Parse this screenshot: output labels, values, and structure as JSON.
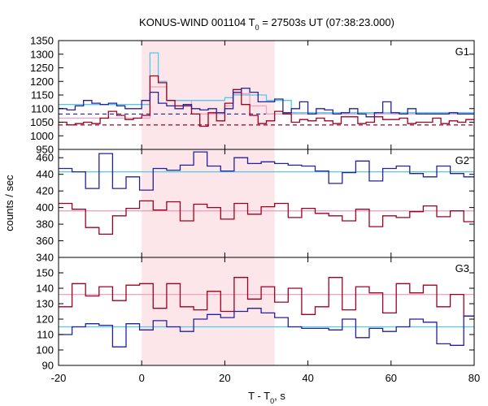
{
  "chart_data": {
    "type": "line",
    "title_main": "KONUS-WIND 001104 T",
    "title_sub": "0",
    "title_rest": " = 27503s UT (07:38:23.000)",
    "xlabel_main": "T - T",
    "xlabel_sub": "0",
    "xlabel_rest": ", s",
    "ylabel": "counts / sec",
    "xlim": [
      -20,
      80
    ],
    "xticks": [
      "-20",
      "0",
      "20",
      "40",
      "60",
      "80"
    ],
    "shaded_interval": [
      0,
      32
    ],
    "colors": {
      "shade": "#fde6ea",
      "red": "#a00020",
      "blue": "#2222a0",
      "cyan": "#55c8e8",
      "pink": "#f0a0c0",
      "lightblue": "#7ab8e8"
    },
    "panels": [
      {
        "name": "G1",
        "ylim": [
          950,
          1350
        ],
        "yticks": [
          "950",
          "1000",
          "1050",
          "1100",
          "1150",
          "1200",
          "1250",
          "1300",
          "1350"
        ],
        "bin_width": 2,
        "x_start": -20,
        "series": [
          {
            "color": "blue",
            "values": [
              1100,
              1095,
              1110,
              1130,
              1120,
              1115,
              1120,
              1110,
              1100,
              1100,
              1130,
              1160,
              1120,
              1110,
              1100,
              1115,
              1100,
              1095,
              1100,
              1085,
              1100,
              1160,
              1175,
              1160,
              1125,
              1125,
              1135,
              1085,
              1100,
              1125,
              1080,
              1100,
              1095,
              1080,
              1085,
              1100,
              1080,
              1070,
              1085,
              1125,
              1085,
              1080,
              1100,
              1080,
              1080,
              1080,
              1080,
              1085,
              1080,
              1080
            ]
          },
          {
            "color": "red",
            "values": [
              1050,
              1040,
              1045,
              1050,
              1045,
              1065,
              1090,
              1075,
              1060,
              1065,
              1075,
              1220,
              1195,
              1130,
              1110,
              1110,
              1080,
              1035,
              1085,
              1055,
              1120,
              1170,
              1115,
              1075,
              1045,
              1055,
              1090,
              1080,
              1050,
              1060,
              1055,
              1065,
              1055,
              1045,
              1070,
              1070,
              1045,
              1050,
              1070,
              1060,
              1060,
              1065,
              1045,
              1050,
              1050,
              1065,
              1045,
              1055,
              1050,
              1060
            ]
          },
          {
            "color": "cyan",
            "values": [
              1115,
              1115,
              1115,
              1115,
              1115,
              1115,
              1115,
              1115,
              1115,
              1115,
              1115,
              1305,
              1200,
              1130,
              1130,
              1130,
              1130,
              1130,
              1130,
              1130,
              1140,
              1150,
              1150,
              1150,
              1150,
              1130,
              1130,
              1130,
              1085,
              1085,
              1085,
              1085,
              1085,
              1085,
              1085,
              1085,
              1085,
              1085,
              1085,
              1085,
              1085,
              1085,
              1085,
              1085,
              1085,
              1085,
              1085,
              1085,
              1085,
              1085
            ]
          },
          {
            "color": "pink",
            "values": [
              1065,
              1065,
              1065,
              1065,
              1065,
              1065,
              1065,
              1065,
              1065,
              1065,
              1065,
              1180,
              1180,
              1130,
              1130,
              1130,
              1080,
              1080,
              1080,
              1080,
              1110,
              1155,
              1155,
              1110,
              1110,
              1080,
              1080,
              1080,
              1080,
              1080,
              1080,
              1080,
              1080,
              1080,
              1080,
              1080,
              1080,
              1080,
              1080,
              1080,
              1080,
              1080,
              1080,
              1080,
              1080,
              1080,
              1080,
              1080,
              1080,
              1080
            ]
          }
        ],
        "bg_blue": 1080,
        "bg_red": 1040
      },
      {
        "name": "G2",
        "ylim": [
          340,
          470
        ],
        "yticks": [
          "340",
          "360",
          "380",
          "400",
          "420",
          "440",
          "460"
        ],
        "bin_width": 3.25,
        "x_start": -20,
        "series": [
          {
            "color": "blue",
            "values": [
              447,
              443,
              423,
              465,
              423,
              437,
              421,
              447,
              445,
              451,
              467,
              450,
              444,
              460,
              453,
              455,
              453,
              451,
              450,
              444,
              429,
              442,
              456,
              432,
              447,
              450,
              441,
              437,
              450,
              441,
              437,
              452,
              436,
              460,
              440,
              446,
              459,
              437,
              451,
              449,
              446,
              462,
              454,
              460,
              447,
              457,
              441,
              441,
              451,
              430,
              409
            ]
          },
          {
            "color": "red",
            "values": [
              405,
              398,
              376,
              368,
              390,
              399,
              408,
              397,
              407,
              384,
              404,
              400,
              386,
              405,
              392,
              401,
              405,
              388,
              399,
              393,
              390,
              384,
              398,
              377,
              390,
              388,
              395,
              402,
              389,
              396,
              383,
              396,
              392,
              404,
              395,
              383,
              390,
              401,
              385,
              391,
              399,
              395,
              406,
              386,
              392,
              384,
              402,
              410,
              418,
              400
            ]
          },
          {
            "color": "cyan",
            "values": [
              443,
              443,
              443,
              443,
              443,
              443,
              443,
              443,
              443,
              443,
              443,
              443,
              443,
              443,
              443,
              443,
              443,
              443,
              443,
              443,
              443,
              443,
              443,
              443,
              443,
              443,
              443,
              443,
              443,
              443,
              443,
              443,
              443
            ]
          },
          {
            "color": "pink",
            "values": [
              396,
              396,
              396,
              396,
              396,
              396,
              396,
              396,
              396,
              396,
              396,
              396,
              396,
              396,
              396,
              396,
              396,
              396,
              396,
              396,
              396,
              396,
              396,
              396,
              396,
              396,
              396,
              396,
              396,
              396,
              396,
              396,
              396
            ]
          }
        ]
      },
      {
        "name": "G3",
        "ylim": [
          90,
          160
        ],
        "yticks": [
          "90",
          "100",
          "110",
          "120",
          "130",
          "140",
          "150"
        ],
        "bin_width": 3.25,
        "x_start": -20,
        "series": [
          {
            "color": "blue",
            "values": [
              110,
              115,
              117,
              116,
              102,
              117,
              113,
              119,
              115,
              112,
              120,
              123,
              121,
              125,
              127,
              124,
              121,
              115,
              114,
              114,
              113,
              120,
              108,
              114,
              112,
              115,
              120,
              118,
              104,
              103,
              122,
              112,
              124,
              115,
              110,
              122,
              102,
              114,
              108,
              101,
              115,
              111,
              114,
              116,
              112,
              108,
              123,
              111,
              102,
              122,
              120
            ]
          },
          {
            "color": "red",
            "values": [
              128,
              143,
              135,
              141,
              132,
              142,
              143,
              127,
              143,
              128,
              126,
              138,
              125,
              147,
              133,
              141,
              131,
              140,
              123,
              128,
              147,
              126,
              141,
              137,
              124,
              143,
              137,
              142,
              128,
              136,
              122,
              135,
              142,
              137,
              142,
              130,
              133,
              134,
              125,
              126,
              129,
              139,
              128,
              132,
              135,
              138,
              130,
              137,
              147,
              135,
              134
            ]
          },
          {
            "color": "cyan",
            "values": [
              115,
              115,
              115,
              115,
              115,
              115,
              115,
              115,
              115,
              115,
              115,
              115,
              115,
              115,
              115,
              115,
              115,
              115,
              115,
              115,
              115,
              115,
              115,
              115,
              115,
              115,
              115,
              115,
              115,
              115,
              115,
              115,
              115
            ]
          },
          {
            "color": "pink",
            "values": [
              136,
              136,
              136,
              136,
              136,
              136,
              136,
              136,
              136,
              136,
              136,
              136,
              136,
              136,
              136,
              136,
              136,
              136,
              136,
              136,
              136,
              136,
              136,
              136,
              136,
              136,
              136,
              136,
              136,
              136,
              136,
              136,
              136
            ]
          }
        ]
      }
    ]
  }
}
